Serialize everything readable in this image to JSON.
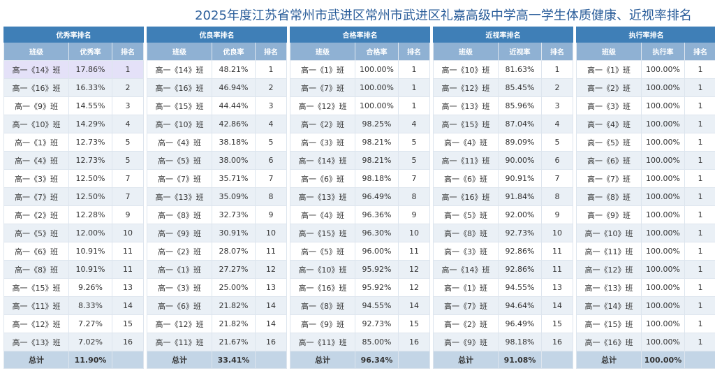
{
  "title": "2025年度江苏省常州市武进区常州市武进区礼嘉高级中学高一学生体质健康、近视率排名",
  "tables": [
    {
      "caption": "优秀率排名",
      "headers": [
        "班级",
        "优秀率",
        "排名"
      ],
      "rows": [
        [
          "高一《14》班",
          "17.86%",
          "1"
        ],
        [
          "高一《16》班",
          "16.33%",
          "2"
        ],
        [
          "高一《9》班",
          "14.55%",
          "3"
        ],
        [
          "高一《10》班",
          "14.29%",
          "4"
        ],
        [
          "高一《1》班",
          "12.73%",
          "5"
        ],
        [
          "高一《4》班",
          "12.73%",
          "5"
        ],
        [
          "高一《3》班",
          "12.50%",
          "7"
        ],
        [
          "高一《7》班",
          "12.50%",
          "7"
        ],
        [
          "高一《2》班",
          "12.28%",
          "9"
        ],
        [
          "高一《5》班",
          "12.00%",
          "10"
        ],
        [
          "高一《6》班",
          "10.91%",
          "11"
        ],
        [
          "高一《8》班",
          "10.91%",
          "11"
        ],
        [
          "高一《15》班",
          "9.26%",
          "13"
        ],
        [
          "高一《11》班",
          "8.33%",
          "14"
        ],
        [
          "高一《12》班",
          "7.27%",
          "15"
        ],
        [
          "高一《13》班",
          "7.02%",
          "16"
        ]
      ],
      "total": [
        "总计",
        "11.90%",
        ""
      ]
    },
    {
      "caption": "优良率排名",
      "headers": [
        "班级",
        "优良率",
        "排名"
      ],
      "rows": [
        [
          "高一《14》班",
          "48.21%",
          "1"
        ],
        [
          "高一《16》班",
          "46.94%",
          "2"
        ],
        [
          "高一《15》班",
          "44.44%",
          "3"
        ],
        [
          "高一《10》班",
          "42.86%",
          "4"
        ],
        [
          "高一《4》班",
          "38.18%",
          "5"
        ],
        [
          "高一《5》班",
          "38.00%",
          "6"
        ],
        [
          "高一《7》班",
          "35.71%",
          "7"
        ],
        [
          "高一《13》班",
          "35.09%",
          "8"
        ],
        [
          "高一《8》班",
          "32.73%",
          "9"
        ],
        [
          "高一《9》班",
          "30.91%",
          "10"
        ],
        [
          "高一《2》班",
          "28.07%",
          "11"
        ],
        [
          "高一《1》班",
          "27.27%",
          "12"
        ],
        [
          "高一《3》班",
          "25.00%",
          "13"
        ],
        [
          "高一《6》班",
          "21.82%",
          "14"
        ],
        [
          "高一《12》班",
          "21.82%",
          "14"
        ],
        [
          "高一《11》班",
          "21.67%",
          "16"
        ]
      ],
      "total": [
        "总计",
        "33.41%",
        ""
      ]
    },
    {
      "caption": "合格率排名",
      "headers": [
        "班级",
        "合格率",
        "排名"
      ],
      "rows": [
        [
          "高一《1》班",
          "100.00%",
          "1"
        ],
        [
          "高一《7》班",
          "100.00%",
          "1"
        ],
        [
          "高一《12》班",
          "100.00%",
          "1"
        ],
        [
          "高一《2》班",
          "98.25%",
          "4"
        ],
        [
          "高一《3》班",
          "98.21%",
          "5"
        ],
        [
          "高一《14》班",
          "98.21%",
          "5"
        ],
        [
          "高一《6》班",
          "98.18%",
          "7"
        ],
        [
          "高一《13》班",
          "96.49%",
          "8"
        ],
        [
          "高一《4》班",
          "96.36%",
          "9"
        ],
        [
          "高一《15》班",
          "96.30%",
          "10"
        ],
        [
          "高一《5》班",
          "96.00%",
          "11"
        ],
        [
          "高一《10》班",
          "95.92%",
          "12"
        ],
        [
          "高一《16》班",
          "95.92%",
          "12"
        ],
        [
          "高一《8》班",
          "94.55%",
          "14"
        ],
        [
          "高一《9》班",
          "92.73%",
          "15"
        ],
        [
          "高一《11》班",
          "85.00%",
          "16"
        ]
      ],
      "total": [
        "总计",
        "96.34%",
        ""
      ]
    },
    {
      "caption": "近视率排名",
      "headers": [
        "班级",
        "近视率",
        "排名"
      ],
      "rows": [
        [
          "高一《10》班",
          "81.63%",
          "1"
        ],
        [
          "高一《12》班",
          "85.45%",
          "2"
        ],
        [
          "高一《13》班",
          "85.96%",
          "3"
        ],
        [
          "高一《15》班",
          "87.04%",
          "4"
        ],
        [
          "高一《4》班",
          "89.09%",
          "5"
        ],
        [
          "高一《11》班",
          "90.00%",
          "6"
        ],
        [
          "高一《6》班",
          "90.91%",
          "7"
        ],
        [
          "高一《16》班",
          "91.84%",
          "8"
        ],
        [
          "高一《5》班",
          "92.00%",
          "9"
        ],
        [
          "高一《8》班",
          "92.73%",
          "10"
        ],
        [
          "高一《3》班",
          "92.86%",
          "11"
        ],
        [
          "高一《14》班",
          "92.86%",
          "11"
        ],
        [
          "高一《1》班",
          "94.55%",
          "13"
        ],
        [
          "高一《7》班",
          "94.64%",
          "14"
        ],
        [
          "高一《2》班",
          "96.49%",
          "15"
        ],
        [
          "高一《9》班",
          "98.18%",
          "16"
        ]
      ],
      "total": [
        "总计",
        "91.08%",
        ""
      ]
    },
    {
      "caption": "执行率排名",
      "headers": [
        "班级",
        "执行率",
        "排名"
      ],
      "rows": [
        [
          "高一《1》班",
          "100.00%",
          "1"
        ],
        [
          "高一《2》班",
          "100.00%",
          "1"
        ],
        [
          "高一《3》班",
          "100.00%",
          "1"
        ],
        [
          "高一《4》班",
          "100.00%",
          "1"
        ],
        [
          "高一《5》班",
          "100.00%",
          "1"
        ],
        [
          "高一《6》班",
          "100.00%",
          "1"
        ],
        [
          "高一《7》班",
          "100.00%",
          "1"
        ],
        [
          "高一《8》班",
          "100.00%",
          "1"
        ],
        [
          "高一《9》班",
          "100.00%",
          "1"
        ],
        [
          "高一《10》班",
          "100.00%",
          "1"
        ],
        [
          "高一《11》班",
          "100.00%",
          "1"
        ],
        [
          "高一《12》班",
          "100.00%",
          "1"
        ],
        [
          "高一《13》班",
          "100.00%",
          "1"
        ],
        [
          "高一《14》班",
          "100.00%",
          "1"
        ],
        [
          "高一《15》班",
          "100.00%",
          "1"
        ],
        [
          "高一《16》班",
          "100.00%",
          "1"
        ]
      ],
      "total": [
        "总计",
        "100.00%",
        ""
      ]
    }
  ]
}
